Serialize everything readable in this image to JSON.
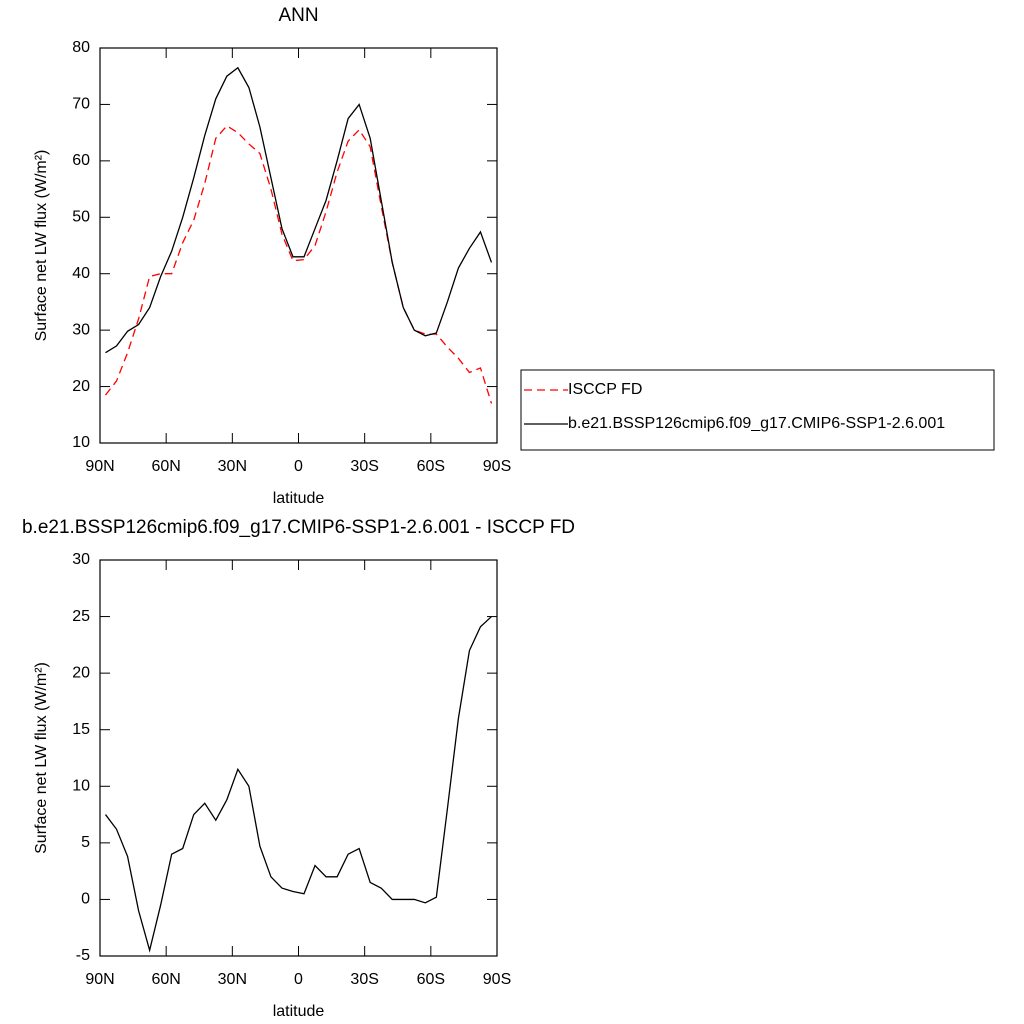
{
  "chart_data": [
    {
      "type": "line",
      "title": "ANN",
      "xlabel": "latitude",
      "ylabel": "Surface net LW flux (W/m²)",
      "x": [
        87.5,
        82.5,
        77.5,
        72.5,
        67.5,
        62.5,
        57.5,
        52.5,
        47.5,
        42.5,
        37.5,
        32.5,
        27.5,
        22.5,
        17.5,
        12.5,
        7.5,
        2.5,
        -2.5,
        -7.5,
        -12.5,
        -17.5,
        -22.5,
        -27.5,
        -32.5,
        -37.5,
        -42.5,
        -47.5,
        -52.5,
        -57.5,
        -62.5,
        -67.5,
        -72.5,
        -77.5,
        -82.5,
        -87.5
      ],
      "series": [
        {
          "name": "ISCCP FD",
          "color": "#ff0000",
          "style": "dashed",
          "values": [
            18.5,
            21,
            26,
            32,
            39.5,
            40,
            40,
            45.5,
            49.5,
            56,
            64,
            66.2,
            65,
            63,
            61.3,
            55,
            47,
            42.3,
            42.5,
            45,
            51,
            58,
            63.5,
            65.5,
            62.5,
            52,
            42,
            34,
            30,
            29.3,
            29.3,
            27,
            25,
            22.5,
            23.3,
            17
          ]
        },
        {
          "name": "b.e21.BSSP126cmip6.f09_g17.CMIP6-SSP1-2.6.001",
          "color": "#000000",
          "style": "solid",
          "values": [
            26,
            27.2,
            29.8,
            31,
            34,
            39.5,
            44,
            50,
            57,
            64.5,
            71,
            75,
            76.5,
            73,
            66,
            57,
            48,
            43,
            43,
            48,
            53,
            60,
            67.5,
            70,
            64,
            53,
            42,
            34,
            30,
            29,
            29.5,
            35,
            41,
            44.5,
            47.4,
            42
          ]
        }
      ],
      "xlim": [
        90,
        -90
      ],
      "xticks": [
        {
          "value": 90,
          "label": "90N"
        },
        {
          "value": 60,
          "label": "60N"
        },
        {
          "value": 30,
          "label": "30N"
        },
        0,
        {
          "value": -30,
          "label": "30S"
        },
        {
          "value": -60,
          "label": "60S"
        },
        {
          "value": -90,
          "label": "90S"
        }
      ],
      "ylim": [
        10,
        80
      ],
      "yticks": [
        10,
        20,
        30,
        40,
        50,
        60,
        70,
        80
      ],
      "legend": "outside-right"
    },
    {
      "type": "line",
      "title": "b.e21.BSSP126cmip6.f09_g17.CMIP6-SSP1-2.6.001 - ISCCP FD",
      "xlabel": "latitude",
      "ylabel": "Surface net LW flux (W/m²)",
      "x": [
        87.5,
        82.5,
        77.5,
        72.5,
        67.5,
        62.5,
        57.5,
        52.5,
        47.5,
        42.5,
        37.5,
        32.5,
        27.5,
        22.5,
        17.5,
        12.5,
        7.5,
        2.5,
        -2.5,
        -7.5,
        -12.5,
        -17.5,
        -22.5,
        -27.5,
        -32.5,
        -37.5,
        -42.5,
        -47.5,
        -52.5,
        -57.5,
        -62.5,
        -67.5,
        -72.5,
        -77.5,
        -82.5,
        -87.5
      ],
      "color": "#000000",
      "values": [
        7.5,
        6.2,
        3.8,
        -1,
        -4.5,
        -0.5,
        4,
        4.5,
        7.5,
        8.5,
        7,
        8.8,
        11.5,
        10,
        4.7,
        2,
        1,
        0.7,
        0.5,
        3,
        2,
        2,
        4,
        4.5,
        1.5,
        1,
        0,
        0,
        0,
        -0.3,
        0.2,
        8,
        16,
        22,
        24.1,
        25
      ],
      "xlim": [
        90,
        -90
      ],
      "xticks": [
        {
          "value": 90,
          "label": "90N"
        },
        {
          "value": 60,
          "label": "60N"
        },
        {
          "value": 30,
          "label": "30N"
        },
        0,
        {
          "value": -30,
          "label": "30S"
        },
        {
          "value": -60,
          "label": "60S"
        },
        {
          "value": -90,
          "label": "90S"
        }
      ],
      "ylim": [
        -5,
        30
      ],
      "yticks": [
        -5,
        0,
        5,
        10,
        15,
        20,
        25,
        30
      ]
    }
  ]
}
